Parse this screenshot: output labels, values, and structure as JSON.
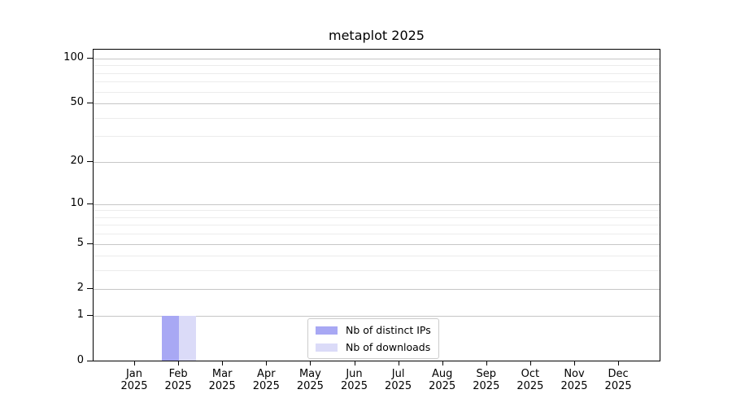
{
  "chart_data": {
    "type": "bar",
    "title": "metaplot 2025",
    "categories": [
      {
        "month": "Jan",
        "year": "2025"
      },
      {
        "month": "Feb",
        "year": "2025"
      },
      {
        "month": "Mar",
        "year": "2025"
      },
      {
        "month": "Apr",
        "year": "2025"
      },
      {
        "month": "May",
        "year": "2025"
      },
      {
        "month": "Jun",
        "year": "2025"
      },
      {
        "month": "Jul",
        "year": "2025"
      },
      {
        "month": "Aug",
        "year": "2025"
      },
      {
        "month": "Sep",
        "year": "2025"
      },
      {
        "month": "Oct",
        "year": "2025"
      },
      {
        "month": "Nov",
        "year": "2025"
      },
      {
        "month": "Dec",
        "year": "2025"
      }
    ],
    "series": [
      {
        "name": "Nb of distinct IPs",
        "color": "#a8a8f4",
        "values": [
          0,
          1,
          0,
          0,
          0,
          0,
          0,
          0,
          0,
          0,
          0,
          0
        ]
      },
      {
        "name": "Nb of downloads",
        "color": "#dbdbf8",
        "values": [
          0,
          1,
          0,
          0,
          0,
          0,
          0,
          0,
          0,
          0,
          0,
          0
        ]
      }
    ],
    "y_axis": {
      "scale": "log1p",
      "tick_labels": [
        "0",
        "1",
        "2",
        "5",
        "10",
        "20",
        "50",
        "100"
      ],
      "major_ticks": [
        0,
        1,
        2,
        5,
        10,
        20,
        50,
        100
      ],
      "minor_ticks": [
        3,
        4,
        6,
        7,
        8,
        9,
        30,
        40,
        60,
        70,
        80,
        90
      ],
      "ylim_top_value": 115
    },
    "x_axis": {
      "label_lines": 2
    },
    "legend": {
      "position": "inside lower center"
    },
    "grid": {
      "major_color": "#c6c6c6",
      "minor_color": "#ececec"
    },
    "axis_color": "#000000",
    "background_color": "#ffffff"
  }
}
